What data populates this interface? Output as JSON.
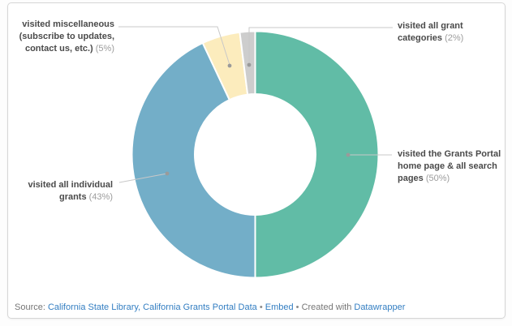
{
  "chart_data": {
    "type": "pie",
    "subtype": "donut",
    "title": "",
    "direction": "clockwise",
    "start_angle_deg": 0,
    "inner_radius_ratio": 0.49,
    "slices": [
      {
        "label": "visited the Grants Portal home page & all search pages",
        "value": 50,
        "color": "#61bca6"
      },
      {
        "label": "visited all individual grants",
        "value": 43,
        "color": "#73aec8"
      },
      {
        "label": "visited miscellaneous (subscribe to updates, contact us, etc.)",
        "value": 5,
        "color": "#fcecbd"
      },
      {
        "label": "visited all grant categories",
        "value": 2,
        "color": "#cdcdcd"
      }
    ]
  },
  "labels": {
    "misc": {
      "name": "visited miscellaneous (subscribe to updates, contact us, etc.)",
      "pct": "(5%)"
    },
    "categories": {
      "name": "visited all grant categories",
      "pct": "(2%)"
    },
    "portal": {
      "name": "visited the Grants Portal home page & all search pages",
      "pct": "(50%)"
    },
    "individual": {
      "name": "visited all individual grants",
      "pct": "(43%)"
    }
  },
  "footer": {
    "source_prefix": "Source: ",
    "source_link": "California State Library, California Grants Portal Data",
    "separator1": " • ",
    "embed_label": "Embed",
    "separator2": " • ",
    "created_with": "Created with ",
    "tool_link": "Datawrapper"
  },
  "colors": {
    "teal": "#61bca6",
    "blue": "#73aec8",
    "yellow": "#fcecbd",
    "gray": "#cdcdcd",
    "label_text": "#4a4a4a",
    "percent_text": "#9c9c9c",
    "leader_line": "#c8c8c8",
    "leader_dot": "#9a9a9a",
    "link_blue": "#337ec2",
    "footer_gray": "#767676",
    "card_border": "#d6d6d6"
  }
}
